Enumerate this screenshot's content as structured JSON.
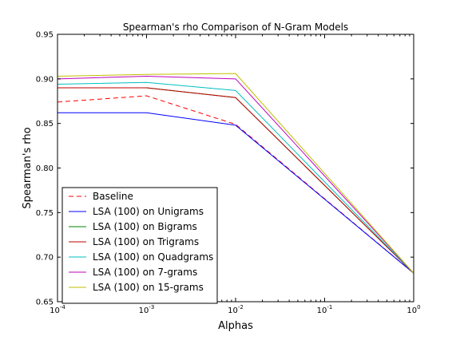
{
  "chart_data": {
    "type": "line",
    "title": "Spearman's rho Comparison of N-Gram Models",
    "xlabel": "Alphas",
    "ylabel": "Spearman's rho",
    "xscale": "log",
    "x": [
      0.0001,
      0.001,
      0.01,
      1
    ],
    "xlim": [
      0.0001,
      1
    ],
    "ylim": [
      0.65,
      0.95
    ],
    "yticks": [
      0.65,
      0.7,
      0.75,
      0.8,
      0.85,
      0.9,
      0.95
    ],
    "ytick_labels": [
      "0.65",
      "0.70",
      "0.75",
      "0.80",
      "0.85",
      "0.90",
      "0.95"
    ],
    "xticks": [
      {
        "value": 0.0001,
        "base": "10",
        "exp": "-4"
      },
      {
        "value": 0.001,
        "base": "10",
        "exp": "-3"
      },
      {
        "value": 0.01,
        "base": "10",
        "exp": "-2"
      },
      {
        "value": 0.1,
        "base": "10",
        "exp": "-1"
      },
      {
        "value": 1,
        "base": "10",
        "exp": "0"
      }
    ],
    "grid": false,
    "legend_position": "lower-left",
    "series": [
      {
        "name": "Baseline",
        "color": "#ff0000",
        "dashed": true,
        "values": [
          0.874,
          0.881,
          0.849,
          0.682
        ]
      },
      {
        "name": "LSA (100) on Unigrams",
        "color": "#0000ff",
        "dashed": false,
        "values": [
          0.862,
          0.862,
          0.848,
          0.682
        ]
      },
      {
        "name": "LSA (100) on Bigrams",
        "color": "#008000",
        "dashed": false,
        "values": [
          0.89,
          0.89,
          0.879,
          0.682
        ]
      },
      {
        "name": "LSA (100) on Trigrams",
        "color": "#c00000",
        "dashed": false,
        "values": [
          0.89,
          0.89,
          0.879,
          0.682
        ]
      },
      {
        "name": "LSA (100) on Quadgrams",
        "color": "#00bfbf",
        "dashed": false,
        "values": [
          0.894,
          0.896,
          0.887,
          0.682
        ]
      },
      {
        "name": "LSA (100) on 7-grams",
        "color": "#bf00bf",
        "dashed": false,
        "values": [
          0.9,
          0.903,
          0.9,
          0.682
        ]
      },
      {
        "name": "LSA (100) on 15-grams",
        "color": "#bfbf00",
        "dashed": false,
        "values": [
          0.903,
          0.905,
          0.906,
          0.682
        ]
      }
    ]
  }
}
